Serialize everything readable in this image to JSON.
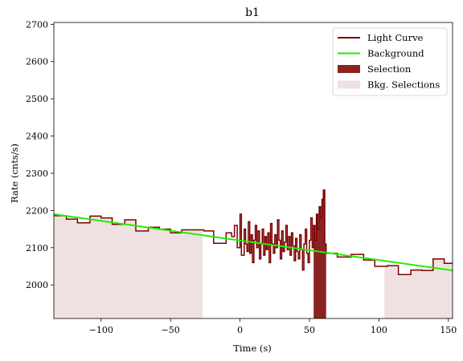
{
  "chart_data": {
    "type": "line",
    "title": "b1",
    "xlabel": "Time (s)",
    "ylabel": "Rate (cnts/s)",
    "xlim": [
      -134,
      153
    ],
    "ylim": [
      1910,
      2705
    ],
    "xticks": [
      -100,
      -50,
      0,
      50,
      100,
      150
    ],
    "yticks": [
      2000,
      2100,
      2200,
      2300,
      2400,
      2500,
      2600,
      2700
    ],
    "xtick_labels": [
      "−100",
      "−50",
      "0",
      "50",
      "100",
      "150"
    ],
    "ytick_labels": [
      "2000",
      "2100",
      "2200",
      "2300",
      "2400",
      "2500",
      "2600",
      "2700"
    ],
    "grid": false,
    "legend_position": "top-right",
    "colors": {
      "light_curve": "#7a0000",
      "background": "#22ee00",
      "selection": "#8b2323",
      "bkg_selection": "#efe1e1"
    },
    "legend": [
      {
        "label": "Light Curve",
        "kind": "line",
        "color": "#7a0000"
      },
      {
        "label": "Background",
        "kind": "line",
        "color": "#22ee00"
      },
      {
        "label": "Selection",
        "kind": "patch",
        "color": "#8b2323"
      },
      {
        "label": "Bkg. Selections",
        "kind": "patch",
        "color": "#efe1e1"
      }
    ],
    "light_curve_steps": [
      [
        -134,
        2186
      ],
      [
        -125,
        2177
      ],
      [
        -117,
        2167
      ],
      [
        -108,
        2185
      ],
      [
        -100,
        2180
      ],
      [
        -92,
        2163
      ],
      [
        -83,
        2175
      ],
      [
        -75,
        2145
      ],
      [
        -66,
        2155
      ],
      [
        -58,
        2150
      ],
      [
        -50,
        2140
      ],
      [
        -42,
        2148
      ],
      [
        -26,
        2145
      ],
      [
        -19,
        2112
      ],
      [
        -10,
        2140
      ],
      [
        -6,
        2130
      ],
      [
        -4,
        2160
      ],
      [
        -2,
        2100
      ],
      [
        0,
        2190
      ],
      [
        1,
        2080
      ],
      [
        3,
        2150
      ],
      [
        4,
        2110
      ],
      [
        5,
        2090
      ],
      [
        6,
        2170
      ],
      [
        7,
        2085
      ],
      [
        8,
        2135
      ],
      [
        9,
        2060
      ],
      [
        10,
        2120
      ],
      [
        11,
        2160
      ],
      [
        12,
        2100
      ],
      [
        13,
        2145
      ],
      [
        14,
        2070
      ],
      [
        15,
        2110
      ],
      [
        16,
        2150
      ],
      [
        17,
        2080
      ],
      [
        18,
        2130
      ],
      [
        19,
        2095
      ],
      [
        20,
        2140
      ],
      [
        21,
        2060
      ],
      [
        22,
        2165
      ],
      [
        23,
        2110
      ],
      [
        24,
        2085
      ],
      [
        25,
        2135
      ],
      [
        26,
        2100
      ],
      [
        27,
        2175
      ],
      [
        28,
        2120
      ],
      [
        29,
        2070
      ],
      [
        30,
        2145
      ],
      [
        31,
        2090
      ],
      [
        32,
        2115
      ],
      [
        33,
        2160
      ],
      [
        34,
        2095
      ],
      [
        35,
        2130
      ],
      [
        36,
        2080
      ],
      [
        37,
        2140
      ],
      [
        38,
        2105
      ],
      [
        39,
        2065
      ],
      [
        40,
        2125
      ],
      [
        41,
        2090
      ],
      [
        42,
        2070
      ],
      [
        43,
        2135
      ],
      [
        44,
        2095
      ],
      [
        45,
        2040
      ],
      [
        46,
        2110
      ],
      [
        47,
        2150
      ],
      [
        48,
        2085
      ],
      [
        49,
        2060
      ],
      [
        50,
        2120
      ],
      [
        51,
        2180
      ],
      [
        52,
        2100
      ],
      [
        53,
        2160
      ],
      [
        54,
        2120
      ],
      [
        55,
        2190
      ],
      [
        56,
        2150
      ],
      [
        57,
        2210
      ],
      [
        58,
        2180
      ],
      [
        59,
        2230
      ],
      [
        60,
        2255
      ],
      [
        61,
        2110
      ],
      [
        62,
        2085
      ],
      [
        70,
        2075
      ],
      [
        80,
        2082
      ],
      [
        89,
        2067
      ],
      [
        97,
        2050
      ],
      [
        106,
        2052
      ],
      [
        114,
        2028
      ],
      [
        123,
        2040
      ],
      [
        131,
        2039
      ],
      [
        139,
        2070
      ],
      [
        147,
        2058
      ],
      [
        153,
        2058
      ]
    ],
    "background_line": {
      "x": [
        -134,
        153
      ],
      "y": [
        2190,
        2039
      ]
    },
    "selection_interval": [
      53,
      62
    ],
    "bkg_selection_intervals": [
      [
        -134,
        -27
      ],
      [
        104,
        153
      ]
    ]
  }
}
